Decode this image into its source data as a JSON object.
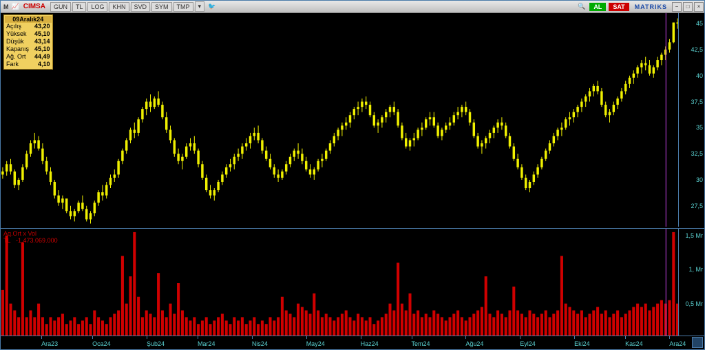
{
  "toolbar": {
    "logo": "M",
    "ticker": "CIMSA",
    "buttons": [
      "GUN",
      "TL",
      "LOG",
      "KHN",
      "SVD",
      "SYM",
      "TMP"
    ],
    "al": "AL",
    "sat": "SAT",
    "brand": "MATRIKS"
  },
  "info_box": {
    "header": "09Aralık24",
    "rows": [
      {
        "label": "Açılış",
        "value": "43,20"
      },
      {
        "label": "Yüksek",
        "value": "45,10"
      },
      {
        "label": "Düşük",
        "value": "43,14"
      },
      {
        "label": "Kapanış",
        "value": "45,10"
      },
      {
        "label": "Ağ. Ort",
        "value": "44,49"
      },
      {
        "label": "Fark",
        "value": "4,10"
      }
    ]
  },
  "price_chart": {
    "type": "candlestick",
    "color_candle": "#f0f000",
    "background": "#000000",
    "axis_color": "#5ad0d0",
    "border_color": "#4a7aa8",
    "ylim": [
      25.5,
      46
    ],
    "yticks": [
      27.5,
      30,
      32.5,
      35,
      37.5,
      40,
      42.5,
      45
    ],
    "cursor_x": 0.98,
    "cursor_color": "#c040e0",
    "candles": [
      {
        "o": 30.5,
        "h": 31.2,
        "l": 30.1,
        "c": 30.8
      },
      {
        "o": 30.8,
        "h": 31.8,
        "l": 30.4,
        "c": 31.5
      },
      {
        "o": 31.5,
        "h": 32.0,
        "l": 30.5,
        "c": 30.8
      },
      {
        "o": 30.8,
        "h": 31.0,
        "l": 29.2,
        "c": 29.5
      },
      {
        "o": 29.5,
        "h": 30.2,
        "l": 29.0,
        "c": 30.0
      },
      {
        "o": 30.0,
        "h": 31.5,
        "l": 29.8,
        "c": 31.2
      },
      {
        "o": 31.2,
        "h": 32.8,
        "l": 31.0,
        "c": 32.5
      },
      {
        "o": 32.5,
        "h": 33.8,
        "l": 32.2,
        "c": 33.5
      },
      {
        "o": 33.5,
        "h": 34.5,
        "l": 33.0,
        "c": 33.8
      },
      {
        "o": 33.8,
        "h": 34.2,
        "l": 32.8,
        "c": 33.0
      },
      {
        "o": 33.0,
        "h": 33.5,
        "l": 31.5,
        "c": 31.8
      },
      {
        "o": 31.8,
        "h": 32.2,
        "l": 30.5,
        "c": 30.8
      },
      {
        "o": 30.8,
        "h": 31.2,
        "l": 29.5,
        "c": 29.8
      },
      {
        "o": 29.8,
        "h": 30.0,
        "l": 28.2,
        "c": 28.5
      },
      {
        "o": 28.5,
        "h": 29.0,
        "l": 27.5,
        "c": 27.8
      },
      {
        "o": 27.8,
        "h": 28.5,
        "l": 27.2,
        "c": 28.2
      },
      {
        "o": 28.2,
        "h": 28.0,
        "l": 26.8,
        "c": 27.0
      },
      {
        "o": 27.0,
        "h": 27.5,
        "l": 26.2,
        "c": 26.5
      },
      {
        "o": 26.5,
        "h": 27.2,
        "l": 26.0,
        "c": 27.0
      },
      {
        "o": 27.0,
        "h": 28.0,
        "l": 26.8,
        "c": 27.8
      },
      {
        "o": 27.8,
        "h": 28.5,
        "l": 27.0,
        "c": 27.2
      },
      {
        "o": 27.2,
        "h": 27.5,
        "l": 26.0,
        "c": 26.2
      },
      {
        "o": 26.2,
        "h": 27.0,
        "l": 25.8,
        "c": 26.8
      },
      {
        "o": 26.8,
        "h": 28.0,
        "l": 26.5,
        "c": 27.8
      },
      {
        "o": 27.8,
        "h": 29.0,
        "l": 27.5,
        "c": 28.8
      },
      {
        "o": 28.8,
        "h": 29.5,
        "l": 28.0,
        "c": 28.5
      },
      {
        "o": 28.5,
        "h": 29.8,
        "l": 28.2,
        "c": 29.5
      },
      {
        "o": 29.5,
        "h": 30.5,
        "l": 29.2,
        "c": 30.2
      },
      {
        "o": 30.2,
        "h": 31.0,
        "l": 29.8,
        "c": 30.5
      },
      {
        "o": 30.5,
        "h": 32.0,
        "l": 30.2,
        "c": 31.8
      },
      {
        "o": 31.8,
        "h": 33.0,
        "l": 31.5,
        "c": 32.8
      },
      {
        "o": 32.8,
        "h": 34.0,
        "l": 32.5,
        "c": 33.8
      },
      {
        "o": 33.8,
        "h": 35.0,
        "l": 33.5,
        "c": 34.8
      },
      {
        "o": 34.8,
        "h": 35.5,
        "l": 34.0,
        "c": 34.5
      },
      {
        "o": 34.5,
        "h": 36.0,
        "l": 34.2,
        "c": 35.8
      },
      {
        "o": 35.8,
        "h": 37.0,
        "l": 35.5,
        "c": 36.8
      },
      {
        "o": 36.8,
        "h": 37.8,
        "l": 36.2,
        "c": 37.5
      },
      {
        "o": 37.5,
        "h": 38.2,
        "l": 36.5,
        "c": 37.0
      },
      {
        "o": 37.0,
        "h": 38.0,
        "l": 36.8,
        "c": 37.8
      },
      {
        "o": 37.8,
        "h": 38.5,
        "l": 37.0,
        "c": 37.2
      },
      {
        "o": 37.2,
        "h": 37.5,
        "l": 35.8,
        "c": 36.0
      },
      {
        "o": 36.0,
        "h": 36.5,
        "l": 34.5,
        "c": 34.8
      },
      {
        "o": 34.8,
        "h": 35.2,
        "l": 33.5,
        "c": 33.8
      },
      {
        "o": 33.8,
        "h": 34.0,
        "l": 32.2,
        "c": 32.5
      },
      {
        "o": 32.5,
        "h": 33.0,
        "l": 31.5,
        "c": 31.8
      },
      {
        "o": 31.8,
        "h": 32.5,
        "l": 31.0,
        "c": 32.2
      },
      {
        "o": 32.2,
        "h": 33.5,
        "l": 32.0,
        "c": 33.2
      },
      {
        "o": 33.2,
        "h": 34.0,
        "l": 32.8,
        "c": 33.5
      },
      {
        "o": 33.5,
        "h": 34.2,
        "l": 32.5,
        "c": 32.8
      },
      {
        "o": 32.8,
        "h": 33.0,
        "l": 31.2,
        "c": 31.5
      },
      {
        "o": 31.5,
        "h": 31.8,
        "l": 30.0,
        "c": 30.2
      },
      {
        "o": 30.2,
        "h": 30.5,
        "l": 28.8,
        "c": 29.0
      },
      {
        "o": 29.0,
        "h": 29.5,
        "l": 28.2,
        "c": 28.5
      },
      {
        "o": 28.5,
        "h": 29.2,
        "l": 28.0,
        "c": 29.0
      },
      {
        "o": 29.0,
        "h": 30.0,
        "l": 28.8,
        "c": 29.8
      },
      {
        "o": 29.8,
        "h": 30.8,
        "l": 29.5,
        "c": 30.5
      },
      {
        "o": 30.5,
        "h": 31.5,
        "l": 30.2,
        "c": 31.2
      },
      {
        "o": 31.2,
        "h": 32.0,
        "l": 30.8,
        "c": 31.5
      },
      {
        "o": 31.5,
        "h": 32.5,
        "l": 31.0,
        "c": 32.2
      },
      {
        "o": 32.2,
        "h": 33.0,
        "l": 31.8,
        "c": 32.5
      },
      {
        "o": 32.5,
        "h": 33.5,
        "l": 32.0,
        "c": 33.2
      },
      {
        "o": 33.2,
        "h": 34.0,
        "l": 32.8,
        "c": 33.5
      },
      {
        "o": 33.5,
        "h": 34.5,
        "l": 33.0,
        "c": 34.2
      },
      {
        "o": 34.2,
        "h": 35.0,
        "l": 33.8,
        "c": 34.5
      },
      {
        "o": 34.5,
        "h": 35.2,
        "l": 33.5,
        "c": 33.8
      },
      {
        "o": 33.8,
        "h": 34.0,
        "l": 32.5,
        "c": 32.8
      },
      {
        "o": 32.8,
        "h": 33.2,
        "l": 31.8,
        "c": 32.0
      },
      {
        "o": 32.0,
        "h": 32.5,
        "l": 31.0,
        "c": 31.2
      },
      {
        "o": 31.2,
        "h": 31.5,
        "l": 30.2,
        "c": 30.5
      },
      {
        "o": 30.5,
        "h": 31.0,
        "l": 29.8,
        "c": 30.2
      },
      {
        "o": 30.2,
        "h": 31.0,
        "l": 30.0,
        "c": 30.8
      },
      {
        "o": 30.8,
        "h": 31.8,
        "l": 30.5,
        "c": 31.5
      },
      {
        "o": 31.5,
        "h": 32.5,
        "l": 31.2,
        "c": 32.2
      },
      {
        "o": 32.2,
        "h": 33.0,
        "l": 31.8,
        "c": 32.8
      },
      {
        "o": 32.8,
        "h": 33.5,
        "l": 32.0,
        "c": 32.5
      },
      {
        "o": 32.5,
        "h": 33.0,
        "l": 31.5,
        "c": 31.8
      },
      {
        "o": 31.8,
        "h": 32.2,
        "l": 30.8,
        "c": 31.0
      },
      {
        "o": 31.0,
        "h": 31.5,
        "l": 30.2,
        "c": 30.5
      },
      {
        "o": 30.5,
        "h": 31.2,
        "l": 30.0,
        "c": 31.0
      },
      {
        "o": 31.0,
        "h": 32.0,
        "l": 30.8,
        "c": 31.8
      },
      {
        "o": 31.8,
        "h": 32.5,
        "l": 31.2,
        "c": 32.0
      },
      {
        "o": 32.0,
        "h": 33.0,
        "l": 31.8,
        "c": 32.8
      },
      {
        "o": 32.8,
        "h": 33.8,
        "l": 32.5,
        "c": 33.5
      },
      {
        "o": 33.5,
        "h": 34.5,
        "l": 33.2,
        "c": 34.2
      },
      {
        "o": 34.2,
        "h": 35.0,
        "l": 33.8,
        "c": 34.8
      },
      {
        "o": 34.8,
        "h": 35.5,
        "l": 34.2,
        "c": 35.2
      },
      {
        "o": 35.2,
        "h": 36.0,
        "l": 34.8,
        "c": 35.5
      },
      {
        "o": 35.5,
        "h": 36.5,
        "l": 35.0,
        "c": 36.2
      },
      {
        "o": 36.2,
        "h": 37.0,
        "l": 35.8,
        "c": 36.8
      },
      {
        "o": 36.8,
        "h": 37.5,
        "l": 36.2,
        "c": 37.0
      },
      {
        "o": 37.0,
        "h": 37.8,
        "l": 36.5,
        "c": 37.5
      },
      {
        "o": 37.5,
        "h": 38.0,
        "l": 36.8,
        "c": 37.2
      },
      {
        "o": 37.2,
        "h": 37.5,
        "l": 36.0,
        "c": 36.2
      },
      {
        "o": 36.2,
        "h": 36.5,
        "l": 35.0,
        "c": 35.2
      },
      {
        "o": 35.2,
        "h": 35.8,
        "l": 34.5,
        "c": 35.5
      },
      {
        "o": 35.5,
        "h": 36.2,
        "l": 35.0,
        "c": 36.0
      },
      {
        "o": 36.0,
        "h": 36.8,
        "l": 35.5,
        "c": 36.5
      },
      {
        "o": 36.5,
        "h": 37.2,
        "l": 36.0,
        "c": 37.0
      },
      {
        "o": 37.0,
        "h": 37.5,
        "l": 36.2,
        "c": 36.5
      },
      {
        "o": 36.5,
        "h": 36.8,
        "l": 35.0,
        "c": 35.2
      },
      {
        "o": 35.2,
        "h": 35.5,
        "l": 33.8,
        "c": 34.0
      },
      {
        "o": 34.0,
        "h": 34.5,
        "l": 33.0,
        "c": 33.2
      },
      {
        "o": 33.2,
        "h": 34.0,
        "l": 32.8,
        "c": 33.8
      },
      {
        "o": 33.8,
        "h": 34.5,
        "l": 33.2,
        "c": 34.0
      },
      {
        "o": 34.0,
        "h": 35.0,
        "l": 33.8,
        "c": 34.8
      },
      {
        "o": 34.8,
        "h": 35.5,
        "l": 34.2,
        "c": 35.0
      },
      {
        "o": 35.0,
        "h": 36.0,
        "l": 34.8,
        "c": 35.8
      },
      {
        "o": 35.8,
        "h": 36.5,
        "l": 35.2,
        "c": 36.0
      },
      {
        "o": 36.0,
        "h": 36.5,
        "l": 35.0,
        "c": 35.2
      },
      {
        "o": 35.2,
        "h": 35.5,
        "l": 34.0,
        "c": 34.2
      },
      {
        "o": 34.2,
        "h": 35.0,
        "l": 33.8,
        "c": 34.8
      },
      {
        "o": 34.8,
        "h": 35.5,
        "l": 34.5,
        "c": 35.2
      },
      {
        "o": 35.2,
        "h": 36.0,
        "l": 34.8,
        "c": 35.5
      },
      {
        "o": 35.5,
        "h": 36.5,
        "l": 35.2,
        "c": 36.2
      },
      {
        "o": 36.2,
        "h": 37.0,
        "l": 35.8,
        "c": 36.5
      },
      {
        "o": 36.5,
        "h": 37.2,
        "l": 36.0,
        "c": 37.0
      },
      {
        "o": 37.0,
        "h": 37.5,
        "l": 36.2,
        "c": 36.5
      },
      {
        "o": 36.5,
        "h": 36.8,
        "l": 35.2,
        "c": 35.5
      },
      {
        "o": 35.5,
        "h": 35.8,
        "l": 34.0,
        "c": 34.2
      },
      {
        "o": 34.2,
        "h": 34.5,
        "l": 33.0,
        "c": 33.2
      },
      {
        "o": 33.2,
        "h": 33.8,
        "l": 32.5,
        "c": 33.5
      },
      {
        "o": 33.5,
        "h": 34.2,
        "l": 33.0,
        "c": 34.0
      },
      {
        "o": 34.0,
        "h": 34.8,
        "l": 33.5,
        "c": 34.5
      },
      {
        "o": 34.5,
        "h": 35.2,
        "l": 34.0,
        "c": 35.0
      },
      {
        "o": 35.0,
        "h": 35.8,
        "l": 34.5,
        "c": 35.5
      },
      {
        "o": 35.5,
        "h": 36.0,
        "l": 34.8,
        "c": 35.2
      },
      {
        "o": 35.2,
        "h": 35.5,
        "l": 34.0,
        "c": 34.2
      },
      {
        "o": 34.2,
        "h": 34.5,
        "l": 33.0,
        "c": 33.2
      },
      {
        "o": 33.2,
        "h": 33.5,
        "l": 31.8,
        "c": 32.0
      },
      {
        "o": 32.0,
        "h": 32.5,
        "l": 31.0,
        "c": 31.2
      },
      {
        "o": 31.2,
        "h": 31.5,
        "l": 30.0,
        "c": 30.2
      },
      {
        "o": 30.2,
        "h": 30.5,
        "l": 29.0,
        "c": 29.2
      },
      {
        "o": 29.2,
        "h": 30.0,
        "l": 28.8,
        "c": 29.8
      },
      {
        "o": 29.8,
        "h": 30.8,
        "l": 29.5,
        "c": 30.5
      },
      {
        "o": 30.5,
        "h": 31.5,
        "l": 30.2,
        "c": 31.2
      },
      {
        "o": 31.2,
        "h": 32.2,
        "l": 31.0,
        "c": 32.0
      },
      {
        "o": 32.0,
        "h": 33.0,
        "l": 31.8,
        "c": 32.8
      },
      {
        "o": 32.8,
        "h": 33.8,
        "l": 32.5,
        "c": 33.5
      },
      {
        "o": 33.5,
        "h": 34.5,
        "l": 33.2,
        "c": 34.2
      },
      {
        "o": 34.2,
        "h": 35.0,
        "l": 33.8,
        "c": 34.8
      },
      {
        "o": 34.8,
        "h": 35.5,
        "l": 34.2,
        "c": 35.0
      },
      {
        "o": 35.0,
        "h": 36.0,
        "l": 34.8,
        "c": 35.8
      },
      {
        "o": 35.8,
        "h": 36.5,
        "l": 35.2,
        "c": 36.0
      },
      {
        "o": 36.0,
        "h": 36.8,
        "l": 35.5,
        "c": 36.5
      },
      {
        "o": 36.5,
        "h": 37.2,
        "l": 36.0,
        "c": 37.0
      },
      {
        "o": 37.0,
        "h": 37.8,
        "l": 36.5,
        "c": 37.5
      },
      {
        "o": 37.5,
        "h": 38.2,
        "l": 37.0,
        "c": 38.0
      },
      {
        "o": 38.0,
        "h": 38.8,
        "l": 37.5,
        "c": 38.5
      },
      {
        "o": 38.5,
        "h": 39.2,
        "l": 38.0,
        "c": 39.0
      },
      {
        "o": 39.0,
        "h": 39.5,
        "l": 38.2,
        "c": 38.5
      },
      {
        "o": 38.5,
        "h": 38.8,
        "l": 37.0,
        "c": 37.2
      },
      {
        "o": 37.2,
        "h": 37.5,
        "l": 36.0,
        "c": 36.2
      },
      {
        "o": 36.2,
        "h": 36.8,
        "l": 35.5,
        "c": 36.5
      },
      {
        "o": 36.5,
        "h": 37.5,
        "l": 36.2,
        "c": 37.2
      },
      {
        "o": 37.2,
        "h": 38.0,
        "l": 36.8,
        "c": 37.8
      },
      {
        "o": 37.8,
        "h": 38.8,
        "l": 37.5,
        "c": 38.5
      },
      {
        "o": 38.5,
        "h": 39.5,
        "l": 38.2,
        "c": 39.2
      },
      {
        "o": 39.2,
        "h": 40.0,
        "l": 38.8,
        "c": 39.8
      },
      {
        "o": 39.8,
        "h": 40.5,
        "l": 39.2,
        "c": 40.2
      },
      {
        "o": 40.2,
        "h": 41.0,
        "l": 39.8,
        "c": 40.8
      },
      {
        "o": 40.8,
        "h": 41.5,
        "l": 40.2,
        "c": 41.2
      },
      {
        "o": 41.2,
        "h": 41.8,
        "l": 40.5,
        "c": 41.0
      },
      {
        "o": 41.0,
        "h": 41.5,
        "l": 40.0,
        "c": 40.2
      },
      {
        "o": 40.2,
        "h": 41.0,
        "l": 39.8,
        "c": 40.8
      },
      {
        "o": 40.8,
        "h": 41.8,
        "l": 40.5,
        "c": 41.5
      },
      {
        "o": 41.5,
        "h": 42.2,
        "l": 41.0,
        "c": 42.0
      },
      {
        "o": 42.0,
        "h": 42.8,
        "l": 41.5,
        "c": 42.5
      },
      {
        "o": 42.5,
        "h": 43.5,
        "l": 42.2,
        "c": 43.2
      },
      {
        "o": 43.2,
        "h": 45.1,
        "l": 43.1,
        "c": 45.1
      },
      {
        "o": 45.1,
        "h": 45.5,
        "l": 44.5,
        "c": 45.0
      }
    ]
  },
  "volume_chart": {
    "type": "bar",
    "label_key": "Aq.Ort x Vol",
    "label_currency": "TL",
    "label_value": "-1.473.069.000",
    "bar_color": "#d00000",
    "ylim": [
      0,
      1.6
    ],
    "yticks": [
      {
        "v": 0.5,
        "label": "0,5 Mr"
      },
      {
        "v": 1.0,
        "label": "1, Mr"
      },
      {
        "v": 1.5,
        "label": "1,5 Mr"
      }
    ],
    "values": [
      0.7,
      1.5,
      0.5,
      0.4,
      0.3,
      1.4,
      0.3,
      0.4,
      0.3,
      0.5,
      0.3,
      0.2,
      0.3,
      0.25,
      0.3,
      0.35,
      0.2,
      0.25,
      0.3,
      0.2,
      0.25,
      0.3,
      0.2,
      0.4,
      0.3,
      0.25,
      0.2,
      0.3,
      0.35,
      0.4,
      1.2,
      0.5,
      0.9,
      1.55,
      0.6,
      0.3,
      0.4,
      0.35,
      0.3,
      0.95,
      0.4,
      0.3,
      0.5,
      0.35,
      0.8,
      0.4,
      0.3,
      0.25,
      0.3,
      0.2,
      0.25,
      0.3,
      0.2,
      0.25,
      0.3,
      0.35,
      0.25,
      0.2,
      0.3,
      0.25,
      0.3,
      0.2,
      0.25,
      0.3,
      0.2,
      0.25,
      0.2,
      0.3,
      0.25,
      0.3,
      0.6,
      0.4,
      0.35,
      0.3,
      0.5,
      0.45,
      0.4,
      0.35,
      0.65,
      0.4,
      0.3,
      0.35,
      0.3,
      0.25,
      0.3,
      0.35,
      0.4,
      0.3,
      0.25,
      0.35,
      0.3,
      0.25,
      0.3,
      0.2,
      0.25,
      0.3,
      0.35,
      0.5,
      0.4,
      1.1,
      0.5,
      0.4,
      0.65,
      0.35,
      0.4,
      0.3,
      0.35,
      0.3,
      0.4,
      0.35,
      0.3,
      0.25,
      0.3,
      0.35,
      0.4,
      0.3,
      0.25,
      0.3,
      0.35,
      0.4,
      0.45,
      0.9,
      0.35,
      0.3,
      0.4,
      0.35,
      0.3,
      0.4,
      0.75,
      0.4,
      0.35,
      0.3,
      0.4,
      0.35,
      0.3,
      0.35,
      0.4,
      0.3,
      0.35,
      0.4,
      1.2,
      0.5,
      0.45,
      0.4,
      0.35,
      0.4,
      0.3,
      0.35,
      0.4,
      0.45,
      0.35,
      0.4,
      0.3,
      0.35,
      0.4,
      0.3,
      0.35,
      0.4,
      0.45,
      0.5,
      0.45,
      0.5,
      0.4,
      0.45,
      0.5,
      0.55,
      0.5,
      0.55,
      1.55,
      0.5
    ]
  },
  "x_axis": {
    "labels": [
      {
        "p": 0.06,
        "label": "Ara23"
      },
      {
        "p": 0.135,
        "label": "Oca24"
      },
      {
        "p": 0.215,
        "label": "Şub24"
      },
      {
        "p": 0.29,
        "label": "Mar24"
      },
      {
        "p": 0.37,
        "label": "Nis24"
      },
      {
        "p": 0.45,
        "label": "May24"
      },
      {
        "p": 0.53,
        "label": "Haz24"
      },
      {
        "p": 0.605,
        "label": "Tem24"
      },
      {
        "p": 0.685,
        "label": "Ağu24"
      },
      {
        "p": 0.765,
        "label": "Eyl24"
      },
      {
        "p": 0.845,
        "label": "Eki24"
      },
      {
        "p": 0.92,
        "label": "Kas24"
      },
      {
        "p": 0.985,
        "label": "Ara24"
      }
    ]
  }
}
